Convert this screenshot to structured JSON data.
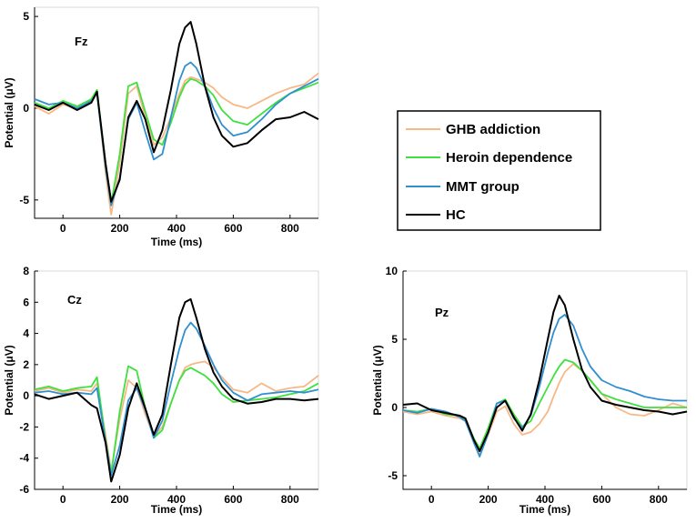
{
  "chart_data": {
    "type": "line",
    "legend": {
      "placement": "middle-right",
      "entries": [
        {
          "name": "GHB addiction",
          "color": "#f7b886"
        },
        {
          "name": "Heroin dependence",
          "color": "#3fe03f"
        },
        {
          "name": "MMT group",
          "color": "#2f8fcf"
        },
        {
          "name": "HC",
          "color": "#000000"
        }
      ]
    },
    "panels": [
      {
        "id": "fz",
        "title": "Fz",
        "xlabel": "Time (ms)",
        "ylabel": "Potential (μV)",
        "xlim": [
          -100,
          900
        ],
        "ylim": [
          -6,
          5.5
        ],
        "xticks": [
          0,
          200,
          400,
          600,
          800
        ],
        "yticks": [
          -5,
          0,
          5
        ],
        "xtick_labels": [
          "0",
          "200",
          "400",
          "600",
          "800"
        ],
        "ytick_labels": [
          "-5",
          "0",
          "5"
        ],
        "x": [
          -100,
          -50,
          0,
          50,
          100,
          120,
          150,
          170,
          200,
          230,
          260,
          290,
          320,
          350,
          380,
          410,
          430,
          450,
          470,
          500,
          530,
          560,
          600,
          650,
          700,
          750,
          800,
          850,
          900
        ],
        "series": [
          {
            "name": "GHB addiction",
            "color": "#f7b886",
            "values": [
              0.1,
              -0.3,
              0.2,
              0.0,
              0.3,
              1.0,
              -3.5,
              -5.8,
              -3.0,
              0.8,
              1.2,
              -0.5,
              -2.0,
              -1.6,
              -0.5,
              0.8,
              1.5,
              1.7,
              1.6,
              1.4,
              1.1,
              0.6,
              0.2,
              0.0,
              0.4,
              0.8,
              1.1,
              1.3,
              1.9
            ]
          },
          {
            "name": "Heroin dependence",
            "color": "#3fe03f",
            "values": [
              0.3,
              0.0,
              0.4,
              0.1,
              0.5,
              1.0,
              -3.0,
              -5.2,
              -2.5,
              1.2,
              1.4,
              -0.2,
              -1.7,
              -2.0,
              -0.8,
              0.6,
              1.3,
              1.6,
              1.5,
              1.2,
              0.7,
              -0.1,
              -0.7,
              -0.9,
              -0.3,
              0.3,
              0.8,
              1.1,
              1.4
            ]
          },
          {
            "name": "MMT group",
            "color": "#2f8fcf",
            "values": [
              0.5,
              0.2,
              0.3,
              0.0,
              0.4,
              0.8,
              -3.2,
              -5.3,
              -3.8,
              -0.6,
              0.3,
              -1.3,
              -2.8,
              -2.5,
              -0.5,
              1.5,
              2.3,
              2.5,
              2.2,
              1.2,
              0.0,
              -0.9,
              -1.5,
              -1.3,
              -0.6,
              0.2,
              0.8,
              1.2,
              1.6
            ]
          },
          {
            "name": "HC",
            "color": "#000000",
            "values": [
              0.2,
              -0.1,
              0.3,
              -0.1,
              0.3,
              0.9,
              -3.0,
              -5.1,
              -3.9,
              -0.5,
              0.4,
              -0.6,
              -2.4,
              -1.2,
              1.0,
              3.5,
              4.4,
              4.7,
              3.5,
              1.2,
              -0.5,
              -1.5,
              -2.1,
              -1.9,
              -1.2,
              -0.6,
              -0.5,
              -0.2,
              -0.6
            ]
          }
        ]
      },
      {
        "id": "cz",
        "title": "Cz",
        "xlabel": "Time (ms)",
        "ylabel": "Potential (μV)",
        "xlim": [
          -100,
          900
        ],
        "ylim": [
          -6,
          8
        ],
        "xticks": [
          0,
          200,
          400,
          600,
          800
        ],
        "yticks": [
          -6,
          -4,
          -2,
          0,
          2,
          4,
          6,
          8
        ],
        "xtick_labels": [
          "0",
          "200",
          "400",
          "600",
          "800"
        ],
        "ytick_labels": [
          "-6",
          "-4",
          "-2",
          "0",
          "2",
          "4",
          "6",
          "8"
        ],
        "x": [
          -100,
          -50,
          0,
          50,
          100,
          120,
          150,
          170,
          200,
          230,
          260,
          290,
          320,
          350,
          380,
          410,
          430,
          450,
          470,
          500,
          530,
          560,
          600,
          650,
          700,
          750,
          800,
          850,
          900
        ],
        "series": [
          {
            "name": "GHB addiction",
            "color": "#f7b886",
            "values": [
              0.3,
              0.5,
              0.2,
              0.4,
              0.3,
              0.8,
              -2.5,
              -4.8,
              -1.5,
              1.0,
              0.5,
              -1.2,
              -2.6,
              -2.0,
              -0.5,
              1.0,
              1.8,
              2.0,
              2.1,
              2.2,
              1.8,
              1.2,
              0.4,
              0.2,
              0.8,
              0.3,
              0.5,
              0.6,
              1.3
            ]
          },
          {
            "name": "Heroin dependence",
            "color": "#3fe03f",
            "values": [
              0.4,
              0.6,
              0.3,
              0.5,
              0.6,
              1.2,
              -2.8,
              -5.0,
              -1.0,
              1.9,
              1.6,
              -0.8,
              -2.7,
              -2.2,
              -0.5,
              1.0,
              1.6,
              1.8,
              1.6,
              1.3,
              0.8,
              0.1,
              -0.4,
              -0.3,
              -0.2,
              -0.1,
              0.1,
              0.3,
              0.8
            ]
          },
          {
            "name": "MMT group",
            "color": "#2f8fcf",
            "values": [
              0.2,
              0.3,
              0.1,
              0.2,
              0.1,
              0.5,
              -2.9,
              -5.1,
              -3.2,
              -0.3,
              0.5,
              -0.9,
              -2.7,
              -1.6,
              0.8,
              3.0,
              4.2,
              4.7,
              4.3,
              3.2,
              2.0,
              1.0,
              0.2,
              -0.3,
              0.1,
              0.2,
              0.3,
              0.2,
              0.4
            ]
          },
          {
            "name": "HC",
            "color": "#000000",
            "values": [
              0.1,
              -0.2,
              0.0,
              0.2,
              -0.6,
              -0.8,
              -3.0,
              -5.5,
              -3.8,
              -0.8,
              0.8,
              -0.8,
              -2.5,
              -1.2,
              2.0,
              5.0,
              6.0,
              6.2,
              5.0,
              3.0,
              1.5,
              0.6,
              -0.2,
              -0.5,
              -0.4,
              -0.2,
              -0.2,
              -0.3,
              -0.2
            ]
          }
        ]
      },
      {
        "id": "pz",
        "title": "Pz",
        "xlabel": "Time (ms)",
        "ylabel": "Potential (μV)",
        "xlim": [
          -100,
          900
        ],
        "ylim": [
          -6,
          10
        ],
        "xticks": [
          0,
          200,
          400,
          600,
          800
        ],
        "yticks": [
          -5,
          0,
          5,
          10
        ],
        "xtick_labels": [
          "0",
          "200",
          "400",
          "600",
          "800"
        ],
        "ytick_labels": [
          "-5",
          "0",
          "5",
          "10"
        ],
        "x": [
          -100,
          -50,
          0,
          50,
          100,
          120,
          150,
          170,
          200,
          230,
          260,
          290,
          320,
          350,
          380,
          410,
          430,
          450,
          470,
          500,
          530,
          560,
          600,
          650,
          700,
          750,
          800,
          850,
          900
        ],
        "series": [
          {
            "name": "GHB addiction",
            "color": "#f7b886",
            "values": [
              -0.3,
              -0.5,
              -0.3,
              -0.6,
              -0.8,
              -1.0,
              -2.5,
              -3.5,
              -2.0,
              -0.3,
              0.1,
              -1.2,
              -2.0,
              -1.8,
              -1.2,
              -0.3,
              0.8,
              1.8,
              2.6,
              3.2,
              2.7,
              2.0,
              1.0,
              0.0,
              -0.5,
              -0.6,
              -0.2,
              0.3,
              0.0
            ]
          },
          {
            "name": "Heroin dependence",
            "color": "#3fe03f",
            "values": [
              -0.2,
              -0.3,
              -0.1,
              -0.5,
              -0.6,
              -0.9,
              -2.3,
              -3.0,
              -1.5,
              0.3,
              0.6,
              -0.5,
              -1.4,
              -1.0,
              0.3,
              1.5,
              2.3,
              3.0,
              3.5,
              3.3,
              2.7,
              2.0,
              1.0,
              0.6,
              0.3,
              0.0,
              0.0,
              0.0,
              0.0
            ]
          },
          {
            "name": "MMT group",
            "color": "#2f8fcf",
            "values": [
              -0.2,
              -0.4,
              -0.1,
              -0.3,
              -0.7,
              -1.0,
              -2.6,
              -3.6,
              -1.9,
              0.3,
              0.5,
              -0.8,
              -1.5,
              -0.6,
              1.5,
              4.0,
              5.5,
              6.5,
              6.8,
              6.0,
              4.3,
              3.0,
              2.0,
              1.5,
              1.2,
              0.8,
              0.6,
              0.5,
              0.5
            ]
          },
          {
            "name": "HC",
            "color": "#000000",
            "values": [
              0.2,
              0.3,
              -0.2,
              -0.4,
              -0.6,
              -0.8,
              -2.4,
              -3.2,
              -1.8,
              0.0,
              0.5,
              -0.7,
              -1.7,
              -0.5,
              2.0,
              5.0,
              7.0,
              8.2,
              7.5,
              5.0,
              2.8,
              1.5,
              0.5,
              0.2,
              0.0,
              -0.2,
              -0.3,
              -0.5,
              -0.3
            ]
          }
        ]
      }
    ]
  }
}
